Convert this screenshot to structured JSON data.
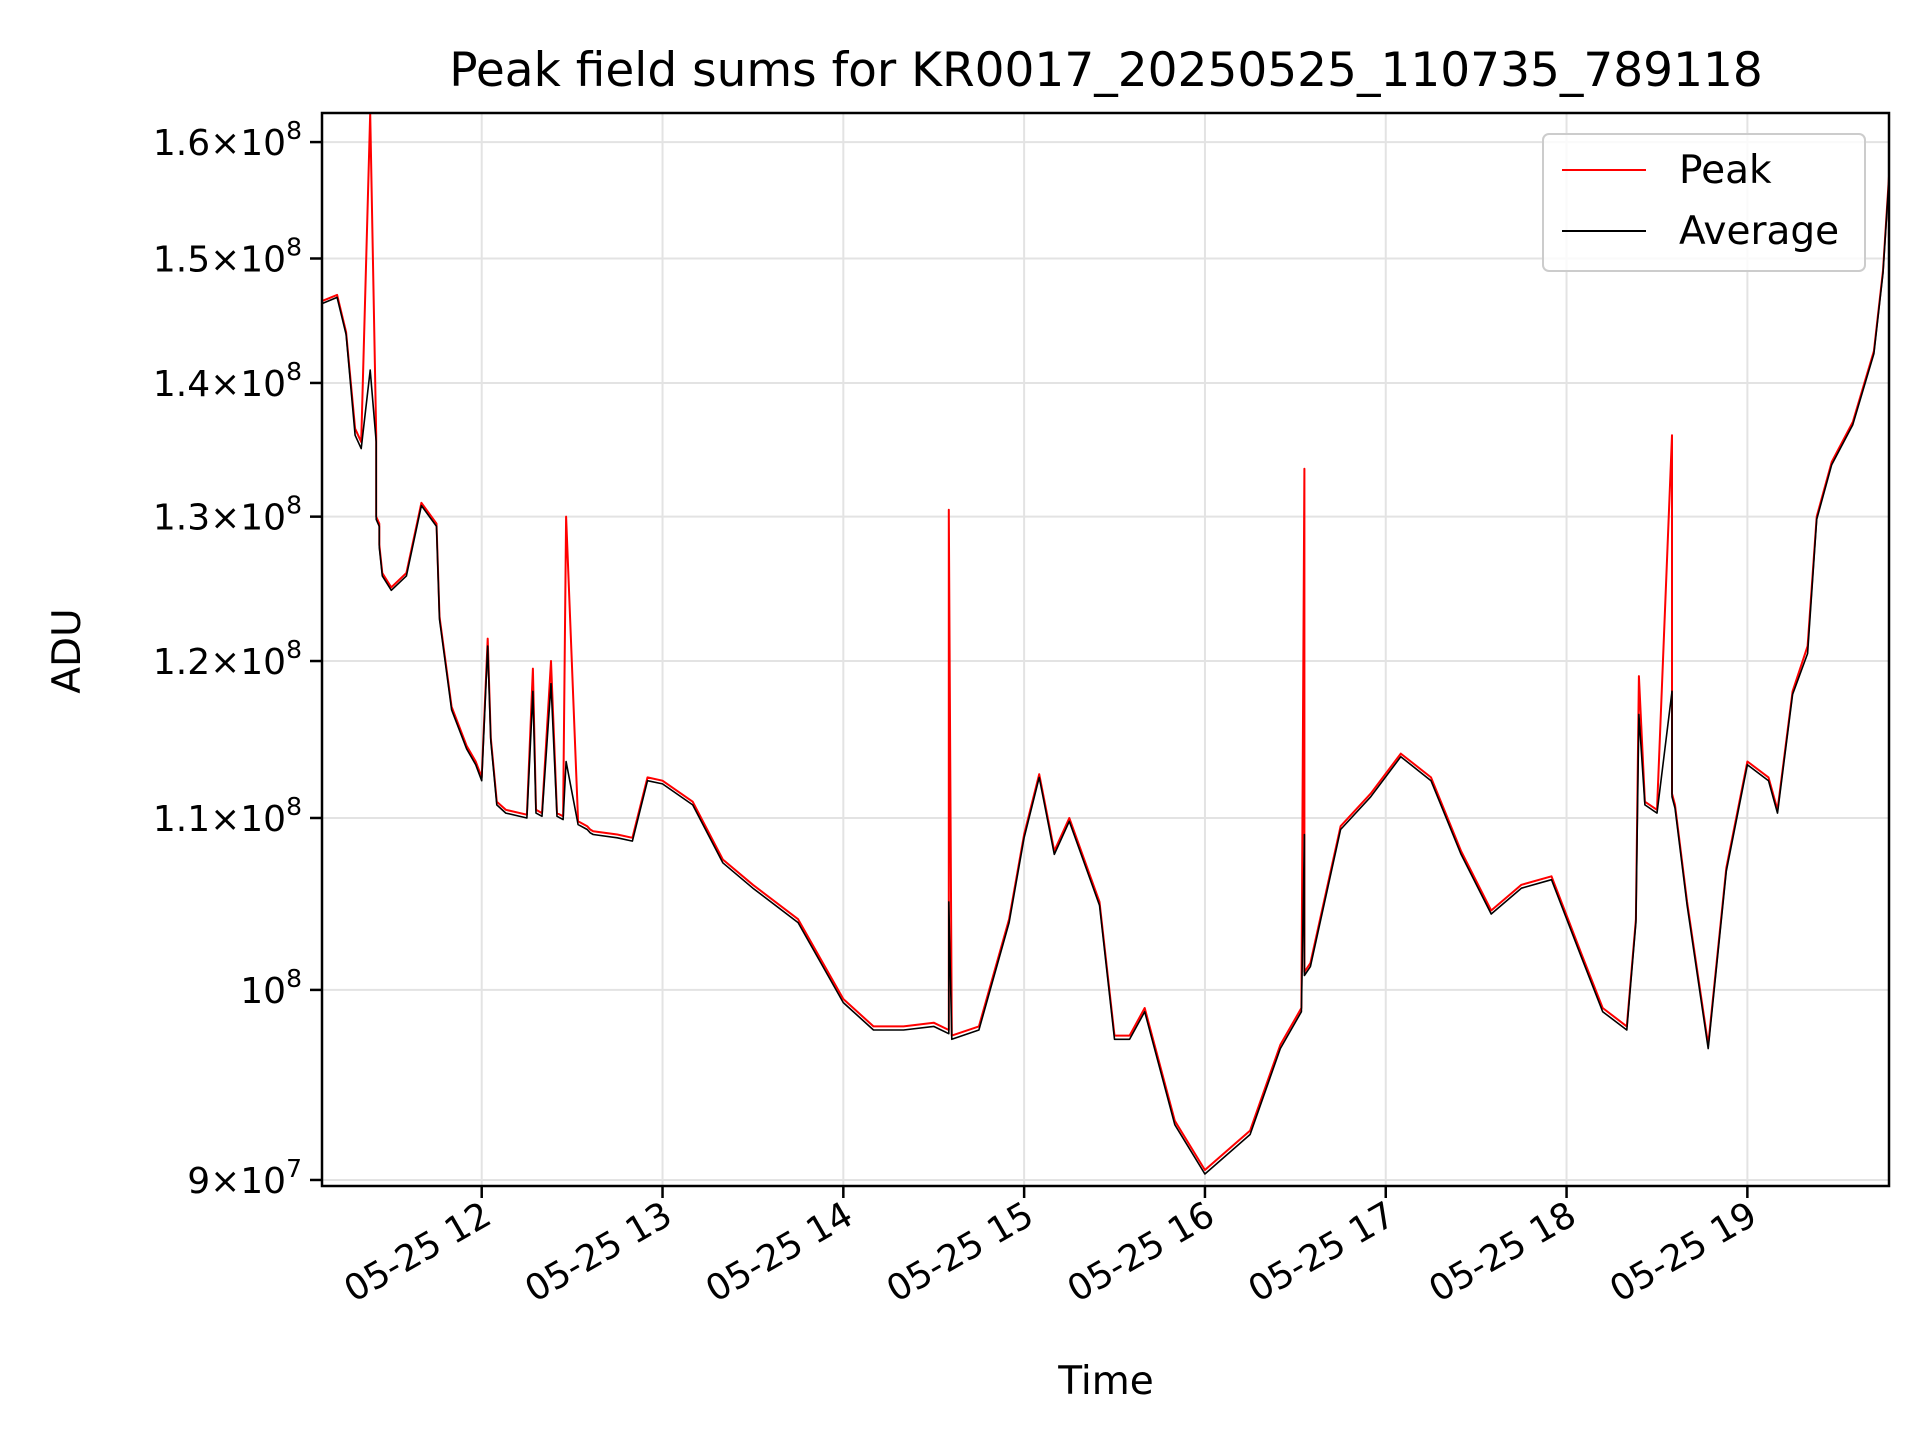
{
  "chart_data": {
    "type": "line",
    "title": "Peak field sums for KR0017_20250525_110735_789118",
    "xlabel": "Time",
    "ylabel": "ADU",
    "yscale": "log",
    "grid": true,
    "legend_position": "top-right",
    "xlim": [
      "2025-05-25 11:07",
      "2025-05-25 19:47"
    ],
    "ylim": [
      89700000,
      162600000
    ],
    "x_ticks": [
      {
        "value": "2025-05-25 12:00",
        "label": "05-25 12"
      },
      {
        "value": "2025-05-25 13:00",
        "label": "05-25 13"
      },
      {
        "value": "2025-05-25 14:00",
        "label": "05-25 14"
      },
      {
        "value": "2025-05-25 15:00",
        "label": "05-25 15"
      },
      {
        "value": "2025-05-25 16:00",
        "label": "05-25 16"
      },
      {
        "value": "2025-05-25 17:00",
        "label": "05-25 17"
      },
      {
        "value": "2025-05-25 18:00",
        "label": "05-25 18"
      },
      {
        "value": "2025-05-25 19:00",
        "label": "05-25 19"
      }
    ],
    "y_ticks": [
      {
        "value": 90000000,
        "mant": "9",
        "exp": "7"
      },
      {
        "value": 100000000,
        "mant": "",
        "exp": "8"
      },
      {
        "value": 110000000,
        "mant": "1.1",
        "exp": "8"
      },
      {
        "value": 120000000,
        "mant": "1.2",
        "exp": "8"
      },
      {
        "value": 130000000,
        "mant": "1.3",
        "exp": "8"
      },
      {
        "value": 140000000,
        "mant": "1.4",
        "exp": "8"
      },
      {
        "value": 150000000,
        "mant": "1.5",
        "exp": "8"
      },
      {
        "value": 160000000,
        "mant": "1.6",
        "exp": "8"
      }
    ],
    "series": [
      {
        "name": "Peak",
        "color": "#ff0000",
        "x": [
          "2025-05-25 11:07",
          "2025-05-25 11:12",
          "2025-05-25 11:15",
          "2025-05-25 11:18",
          "2025-05-25 11:20",
          "2025-05-25 11:23",
          "2025-05-25 11:25",
          "2025-05-25 11:25",
          "2025-05-25 11:26",
          "2025-05-25 11:26",
          "2025-05-25 11:27",
          "2025-05-25 11:30",
          "2025-05-25 11:35",
          "2025-05-25 11:40",
          "2025-05-25 11:45",
          "2025-05-25 11:46",
          "2025-05-25 11:50",
          "2025-05-25 11:55",
          "2025-05-25 11:58",
          "2025-05-25 12:00",
          "2025-05-25 12:02",
          "2025-05-25 12:03",
          "2025-05-25 12:05",
          "2025-05-25 12:08",
          "2025-05-25 12:15",
          "2025-05-25 12:17",
          "2025-05-25 12:18",
          "2025-05-25 12:20",
          "2025-05-25 12:23",
          "2025-05-25 12:25",
          "2025-05-25 12:27",
          "2025-05-25 12:28",
          "2025-05-25 12:32",
          "2025-05-25 12:35",
          "2025-05-25 12:36",
          "2025-05-25 12:37",
          "2025-05-25 12:45",
          "2025-05-25 12:50",
          "2025-05-25 12:55",
          "2025-05-25 13:00",
          "2025-05-25 13:10",
          "2025-05-25 13:20",
          "2025-05-25 13:30",
          "2025-05-25 13:45",
          "2025-05-25 14:00",
          "2025-05-25 14:10",
          "2025-05-25 14:20",
          "2025-05-25 14:30",
          "2025-05-25 14:35",
          "2025-05-25 14:35",
          "2025-05-25 14:36",
          "2025-05-25 14:45",
          "2025-05-25 14:55",
          "2025-05-25 15:00",
          "2025-05-25 15:05",
          "2025-05-25 15:10",
          "2025-05-25 15:15",
          "2025-05-25 15:25",
          "2025-05-25 15:30",
          "2025-05-25 15:35",
          "2025-05-25 15:40",
          "2025-05-25 15:50",
          "2025-05-25 16:00",
          "2025-05-25 16:15",
          "2025-05-25 16:25",
          "2025-05-25 16:32",
          "2025-05-25 16:33",
          "2025-05-25 16:33",
          "2025-05-25 16:35",
          "2025-05-25 16:45",
          "2025-05-25 16:55",
          "2025-05-25 17:05",
          "2025-05-25 17:15",
          "2025-05-25 17:25",
          "2025-05-25 17:35",
          "2025-05-25 17:45",
          "2025-05-25 17:55",
          "2025-05-25 18:05",
          "2025-05-25 18:12",
          "2025-05-25 18:20",
          "2025-05-25 18:23",
          "2025-05-25 18:24",
          "2025-05-25 18:26",
          "2025-05-25 18:30",
          "2025-05-25 18:35",
          "2025-05-25 18:35",
          "2025-05-25 18:36",
          "2025-05-25 18:40",
          "2025-05-25 18:47",
          "2025-05-25 18:53",
          "2025-05-25 19:00",
          "2025-05-25 19:07",
          "2025-05-25 19:10",
          "2025-05-25 19:15",
          "2025-05-25 19:20",
          "2025-05-25 19:23",
          "2025-05-25 19:28",
          "2025-05-25 19:35",
          "2025-05-25 19:42",
          "2025-05-25 19:45",
          "2025-05-25 19:47"
        ],
        "y": [
          146500000,
          147000000,
          144000000,
          136500000,
          135500000,
          162600000,
          136000000,
          130000000,
          129500000,
          128000000,
          126000000,
          125000000,
          126000000,
          131000000,
          129500000,
          123000000,
          117000000,
          114500000,
          113500000,
          112500000,
          121500000,
          115000000,
          111000000,
          110500000,
          110200000,
          119500000,
          110500000,
          110300000,
          120000000,
          110300000,
          110100000,
          130000000,
          109800000,
          109500000,
          109300000,
          109200000,
          109000000,
          108800000,
          112500000,
          112300000,
          111000000,
          107500000,
          106000000,
          104000000,
          99500000,
          98000000,
          98000000,
          98200000,
          97800000,
          130500000,
          97500000,
          98000000,
          104000000,
          109000000,
          112700000,
          108000000,
          110000000,
          105000000,
          97500000,
          97500000,
          99000000,
          93000000,
          90500000,
          92500000,
          97000000,
          99000000,
          133500000,
          101000000,
          101500000,
          109500000,
          111500000,
          114000000,
          112500000,
          108000000,
          104500000,
          106000000,
          106500000,
          102000000,
          99000000,
          98000000,
          104000000,
          119000000,
          111000000,
          110500000,
          136000000,
          111500000,
          110800000,
          105000000,
          97000000,
          107000000,
          113500000,
          112500000,
          110500000,
          118000000,
          121000000,
          130000000,
          134000000,
          137000000,
          142500000,
          149000000,
          157000000
        ]
      },
      {
        "name": "Average",
        "color": "#000000",
        "x": [
          "2025-05-25 11:07",
          "2025-05-25 11:12",
          "2025-05-25 11:15",
          "2025-05-25 11:18",
          "2025-05-25 11:20",
          "2025-05-25 11:23",
          "2025-05-25 11:25",
          "2025-05-25 11:25",
          "2025-05-25 11:26",
          "2025-05-25 11:26",
          "2025-05-25 11:27",
          "2025-05-25 11:30",
          "2025-05-25 11:35",
          "2025-05-25 11:40",
          "2025-05-25 11:45",
          "2025-05-25 11:46",
          "2025-05-25 11:50",
          "2025-05-25 11:55",
          "2025-05-25 11:58",
          "2025-05-25 12:00",
          "2025-05-25 12:02",
          "2025-05-25 12:03",
          "2025-05-25 12:05",
          "2025-05-25 12:08",
          "2025-05-25 12:15",
          "2025-05-25 12:17",
          "2025-05-25 12:18",
          "2025-05-25 12:20",
          "2025-05-25 12:23",
          "2025-05-25 12:25",
          "2025-05-25 12:27",
          "2025-05-25 12:28",
          "2025-05-25 12:32",
          "2025-05-25 12:35",
          "2025-05-25 12:36",
          "2025-05-25 12:37",
          "2025-05-25 12:45",
          "2025-05-25 12:50",
          "2025-05-25 12:55",
          "2025-05-25 13:00",
          "2025-05-25 13:10",
          "2025-05-25 13:20",
          "2025-05-25 13:30",
          "2025-05-25 13:45",
          "2025-05-25 14:00",
          "2025-05-25 14:10",
          "2025-05-25 14:20",
          "2025-05-25 14:30",
          "2025-05-25 14:35",
          "2025-05-25 14:35",
          "2025-05-25 14:36",
          "2025-05-25 14:45",
          "2025-05-25 14:55",
          "2025-05-25 15:00",
          "2025-05-25 15:05",
          "2025-05-25 15:10",
          "2025-05-25 15:15",
          "2025-05-25 15:25",
          "2025-05-25 15:30",
          "2025-05-25 15:35",
          "2025-05-25 15:40",
          "2025-05-25 15:50",
          "2025-05-25 16:00",
          "2025-05-25 16:15",
          "2025-05-25 16:25",
          "2025-05-25 16:32",
          "2025-05-25 16:33",
          "2025-05-25 16:33",
          "2025-05-25 16:35",
          "2025-05-25 16:45",
          "2025-05-25 16:55",
          "2025-05-25 17:05",
          "2025-05-25 17:15",
          "2025-05-25 17:25",
          "2025-05-25 17:35",
          "2025-05-25 17:45",
          "2025-05-25 17:55",
          "2025-05-25 18:05",
          "2025-05-25 18:12",
          "2025-05-25 18:20",
          "2025-05-25 18:23",
          "2025-05-25 18:24",
          "2025-05-25 18:26",
          "2025-05-25 18:30",
          "2025-05-25 18:35",
          "2025-05-25 18:35",
          "2025-05-25 18:36",
          "2025-05-25 18:40",
          "2025-05-25 18:47",
          "2025-05-25 18:53",
          "2025-05-25 19:00",
          "2025-05-25 19:07",
          "2025-05-25 19:10",
          "2025-05-25 19:15",
          "2025-05-25 19:20",
          "2025-05-25 19:23",
          "2025-05-25 19:28",
          "2025-05-25 19:35",
          "2025-05-25 19:42",
          "2025-05-25 19:45",
          "2025-05-25 19:47"
        ],
        "y": [
          146300000,
          146800000,
          143800000,
          136000000,
          135000000,
          141000000,
          135500000,
          129800000,
          129300000,
          127800000,
          125800000,
          124800000,
          125800000,
          130800000,
          129300000,
          122800000,
          116800000,
          114300000,
          113300000,
          112300000,
          121000000,
          114800000,
          110800000,
          110300000,
          110000000,
          118000000,
          110300000,
          110100000,
          118500000,
          110100000,
          109900000,
          113500000,
          109600000,
          109300000,
          109100000,
          109000000,
          108800000,
          108600000,
          112300000,
          112100000,
          110800000,
          107300000,
          105800000,
          103800000,
          99300000,
          97800000,
          97800000,
          98000000,
          97600000,
          105000000,
          97300000,
          97800000,
          103800000,
          108800000,
          112500000,
          107800000,
          109800000,
          104800000,
          97300000,
          97300000,
          98800000,
          92800000,
          90300000,
          92300000,
          96800000,
          98800000,
          109000000,
          100800000,
          101300000,
          109300000,
          111300000,
          113800000,
          112300000,
          107800000,
          104300000,
          105800000,
          106300000,
          101800000,
          98800000,
          97800000,
          103800000,
          116500000,
          110800000,
          110300000,
          118000000,
          111300000,
          110600000,
          104800000,
          96800000,
          106800000,
          113300000,
          112300000,
          110300000,
          117800000,
          120500000,
          129800000,
          133800000,
          136800000,
          142300000,
          148800000,
          156800000
        ]
      }
    ]
  }
}
